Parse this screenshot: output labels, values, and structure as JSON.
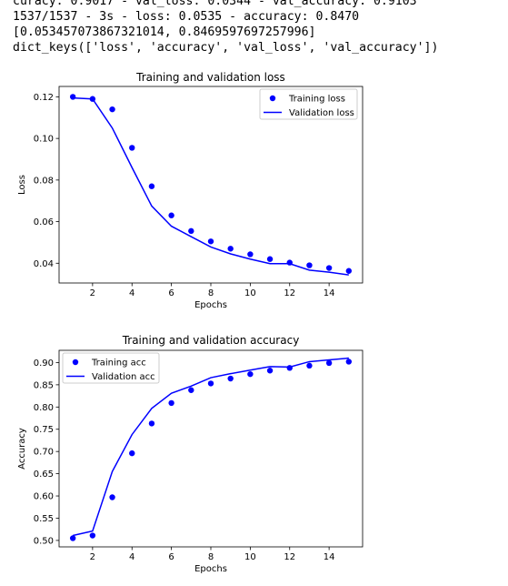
{
  "console": {
    "lines": [
      "curacy: 0.9017 - val_loss: 0.0344 - val_accuracy: 0.9103",
      "1537/1537 - 3s - loss: 0.0535 - accuracy: 0.8470",
      "[0.053457073867321014, 0.8469597697257996]",
      "dict_keys(['loss', 'accuracy', 'val_loss', 'val_accuracy'])"
    ]
  },
  "colors": {
    "series": "#0000ff",
    "axis": "#000000",
    "legend_border": "#cccccc"
  },
  "chart_data": [
    {
      "type": "line",
      "title": "Training and validation loss",
      "xlabel": "Epochs",
      "ylabel": "Loss",
      "xlim": [
        0.3,
        15.7
      ],
      "ylim": [
        0.0305,
        0.125
      ],
      "xticks": [
        2,
        4,
        6,
        8,
        10,
        12,
        14
      ],
      "xtick_labels": [
        "2",
        "4",
        "6",
        "8",
        "10",
        "12",
        "14"
      ],
      "yticks": [
        0.04,
        0.06,
        0.08,
        0.1,
        0.12
      ],
      "ytick_labels": [
        "0.04",
        "0.06",
        "0.08",
        "0.10",
        "0.12"
      ],
      "legend_position": "upper-right",
      "grid": false,
      "x": [
        1,
        2,
        3,
        4,
        5,
        6,
        7,
        8,
        9,
        10,
        11,
        12,
        13,
        14,
        15
      ],
      "series": [
        {
          "name": "Training loss",
          "style": "markers",
          "values": [
            0.12,
            0.119,
            0.114,
            0.0955,
            0.077,
            0.063,
            0.0555,
            0.0505,
            0.047,
            0.0443,
            0.042,
            0.0403,
            0.039,
            0.0377,
            0.0363
          ]
        },
        {
          "name": "Validation loss",
          "style": "line",
          "values": [
            0.1195,
            0.119,
            0.105,
            0.086,
            0.0675,
            0.0578,
            0.0528,
            0.0478,
            0.0445,
            0.042,
            0.0398,
            0.0398,
            0.0367,
            0.0357,
            0.0344
          ]
        }
      ]
    },
    {
      "type": "line",
      "title": "Training and validation accuracy",
      "xlabel": "Epochs",
      "ylabel": "Accuracy",
      "xlim": [
        0.3,
        15.7
      ],
      "ylim": [
        0.4855,
        0.9275
      ],
      "xticks": [
        2,
        4,
        6,
        8,
        10,
        12,
        14
      ],
      "xtick_labels": [
        "2",
        "4",
        "6",
        "8",
        "10",
        "12",
        "14"
      ],
      "yticks": [
        0.5,
        0.55,
        0.6,
        0.65,
        0.7,
        0.75,
        0.8,
        0.85,
        0.9
      ],
      "ytick_labels": [
        "0.50",
        "0.55",
        "0.60",
        "0.65",
        "0.70",
        "0.75",
        "0.80",
        "0.85",
        "0.90"
      ],
      "legend_position": "upper-left",
      "grid": false,
      "x": [
        1,
        2,
        3,
        4,
        5,
        6,
        7,
        8,
        9,
        10,
        11,
        12,
        13,
        14,
        15
      ],
      "series": [
        {
          "name": "Training acc",
          "style": "markers",
          "values": [
            0.505,
            0.511,
            0.597,
            0.696,
            0.763,
            0.809,
            0.838,
            0.853,
            0.864,
            0.874,
            0.882,
            0.888,
            0.893,
            0.899,
            0.902
          ]
        },
        {
          "name": "Validation acc",
          "style": "line",
          "values": [
            0.511,
            0.521,
            0.655,
            0.738,
            0.797,
            0.831,
            0.847,
            0.866,
            0.875,
            0.883,
            0.891,
            0.89,
            0.902,
            0.906,
            0.91
          ]
        }
      ]
    }
  ]
}
